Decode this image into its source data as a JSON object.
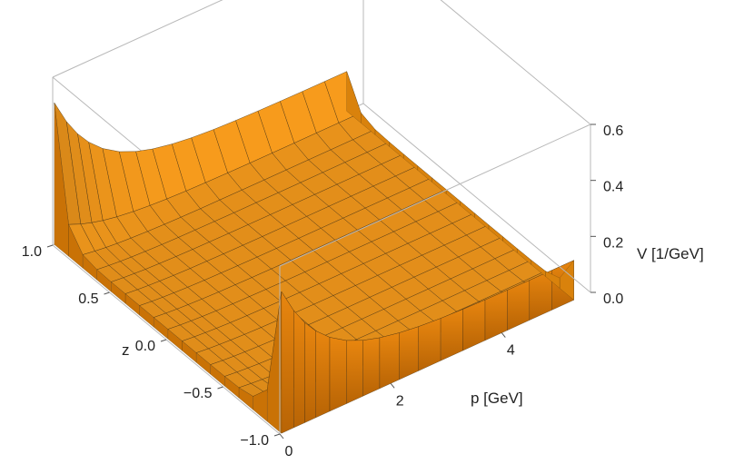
{
  "chart_data": {
    "type": "surface3d",
    "title": "",
    "axes": {
      "x": {
        "label": "p [GeV]",
        "range": [
          0,
          5.6
        ],
        "ticks": [
          {
            "value": 0,
            "label": "0"
          },
          {
            "value": 2,
            "label": "2"
          },
          {
            "value": 4,
            "label": "4"
          }
        ]
      },
      "y": {
        "label": "z",
        "range": [
          -1.0,
          1.0
        ],
        "ticks": [
          {
            "value": -1.0,
            "label": "−1.0"
          },
          {
            "value": -0.5,
            "label": "−0.5"
          },
          {
            "value": 0.0,
            "label": "0.0"
          },
          {
            "value": 0.5,
            "label": "0.5"
          },
          {
            "value": 1.0,
            "label": "1.0"
          }
        ]
      },
      "z": {
        "label": "V [1/GeV]",
        "range": [
          0,
          0.6
        ],
        "ticks": [
          {
            "value": 0.0,
            "label": "0.0"
          },
          {
            "value": 0.2,
            "label": "0.2"
          },
          {
            "value": 0.4,
            "label": "0.4"
          },
          {
            "value": 0.6,
            "label": "0.6"
          }
        ]
      }
    },
    "grid": {
      "p": [
        0.03,
        0.25,
        0.45,
        0.65,
        0.9,
        1.2,
        1.5,
        1.8,
        2.15,
        2.5,
        2.9,
        3.3,
        3.7,
        4.1,
        4.5,
        4.9,
        5.3
      ],
      "z": [
        -1.0,
        -0.875,
        -0.75,
        -0.625,
        -0.5,
        -0.375,
        -0.25,
        -0.125,
        0.0,
        0.125,
        0.25,
        0.375,
        0.5,
        0.625,
        0.75,
        0.875,
        1.0
      ],
      "edge_value": 0.52,
      "plateau_value": 0.015
    },
    "surface_color": "#f59a1c",
    "mesh_color": "#3a2a10",
    "box": true
  }
}
